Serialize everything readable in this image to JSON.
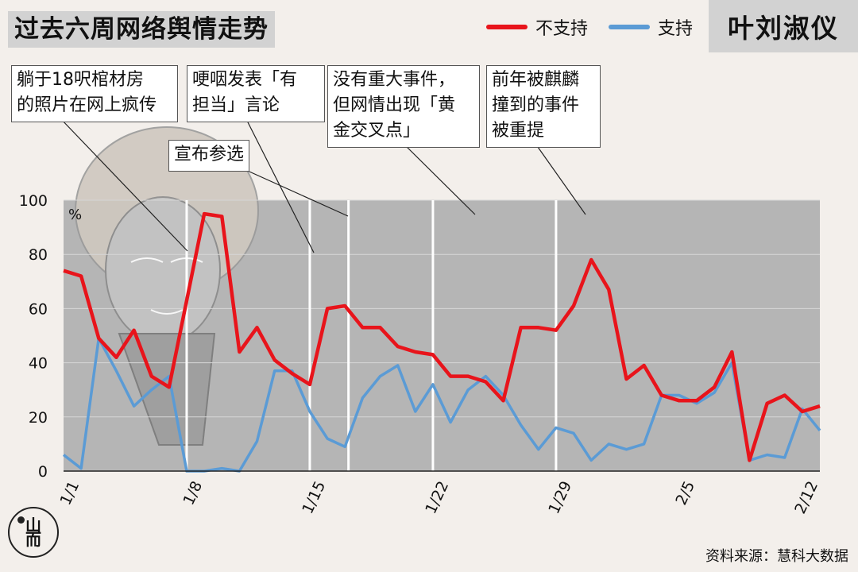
{
  "header": {
    "title": "过去六周网络舆情走势",
    "person_name": "叶刘淑仪"
  },
  "legend": [
    {
      "name": "不支持",
      "color": "#e8141b"
    },
    {
      "name": "支持",
      "color": "#5b9bd5"
    }
  ],
  "annotations": [
    {
      "text": "躺于18呎棺材房\n的照片在网上疯传"
    },
    {
      "text": "哽咽发表「有\n担当」言论"
    },
    {
      "text": "宣布参选"
    },
    {
      "text": "没有重大事件，\n但网情出现「黄\n金交叉点」"
    },
    {
      "text": "前年被麒麟\n撞到的事件\n被重提"
    }
  ],
  "source": "资料来源：慧科大数据",
  "logo_text": "山\n而",
  "chart_data": {
    "type": "line",
    "ylabel": "%",
    "ylim": [
      0,
      100
    ],
    "y_ticks": [
      0,
      20,
      40,
      60,
      80,
      100
    ],
    "x_tick_labels": [
      "1/1",
      "1/8",
      "1/15",
      "1/22",
      "1/29",
      "2/5",
      "2/12"
    ],
    "x_tick_index": [
      0,
      7,
      14,
      21,
      28,
      35,
      42
    ],
    "event_index": [
      7.0,
      14.0,
      16.2,
      21.0,
      28.0
    ],
    "grid": "horizontal",
    "series": [
      {
        "name": "不支持",
        "color": "#e8141b",
        "values": [
          74,
          72,
          49,
          42,
          52,
          35,
          31,
          63,
          95,
          94,
          44,
          53,
          41,
          36,
          32,
          60,
          61,
          53,
          53,
          46,
          44,
          43,
          35,
          35,
          33,
          26,
          53,
          53,
          52,
          61,
          78,
          67,
          34,
          39,
          28,
          26,
          26,
          31,
          44,
          4,
          25,
          28,
          22,
          24
        ]
      },
      {
        "name": "支持",
        "color": "#5b9bd5",
        "values": [
          6,
          1,
          49,
          37,
          24,
          30,
          35,
          0,
          0,
          1,
          0,
          11,
          37,
          37,
          22,
          12,
          9,
          27,
          35,
          39,
          22,
          32,
          18,
          30,
          35,
          28,
          17,
          8,
          16,
          14,
          4,
          10,
          8,
          10,
          28,
          28,
          25,
          29,
          40,
          4,
          6,
          5,
          23,
          15
        ]
      }
    ]
  }
}
